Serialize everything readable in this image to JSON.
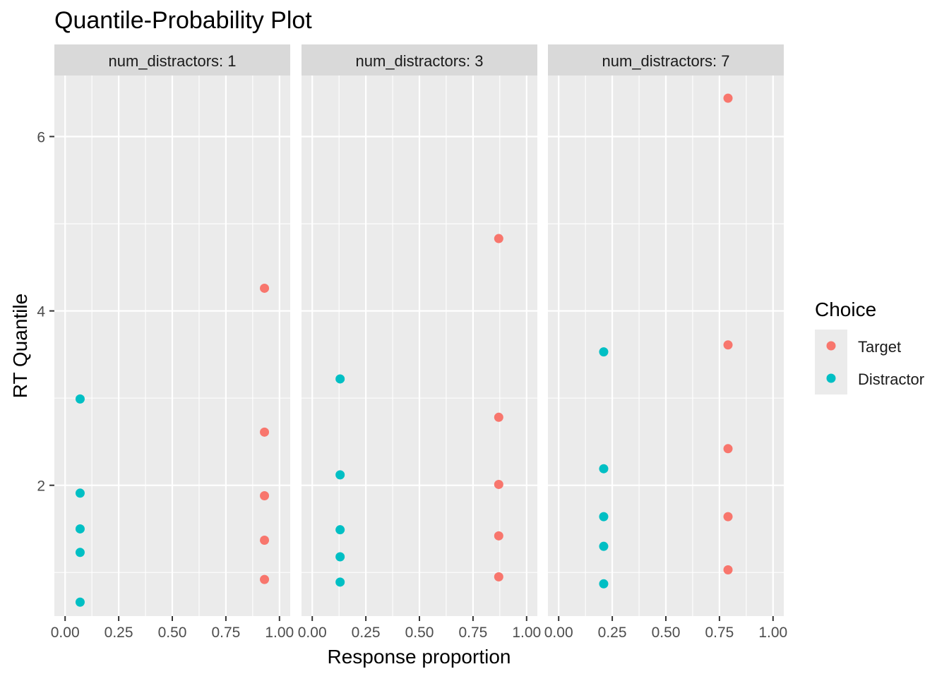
{
  "title": "Quantile-Probability Plot",
  "chart_data": {
    "type": "scatter",
    "title": "Quantile-Probability Plot",
    "xlabel": "Response proportion",
    "ylabel": "RT Quantile",
    "xlim": [
      0,
      1
    ],
    "ylim": [
      0.5,
      6.7
    ],
    "x_ticks": [
      "0.00",
      "0.25",
      "0.50",
      "0.75",
      "1.00"
    ],
    "y_ticks": [
      "2",
      "4",
      "6"
    ],
    "grid": true,
    "legend": {
      "title": "Choice",
      "position": "right",
      "entries": [
        {
          "name": "Target",
          "color": "#F8766D"
        },
        {
          "name": "Distractor",
          "color": "#00BFC4"
        }
      ]
    },
    "facets": [
      {
        "label": "num_distractors: 1",
        "series": [
          {
            "name": "Target",
            "x": [
              0.93,
              0.93,
              0.93,
              0.93,
              0.93
            ],
            "y": [
              0.92,
              1.37,
              1.88,
              2.61,
              4.26
            ]
          },
          {
            "name": "Distractor",
            "x": [
              0.07,
              0.07,
              0.07,
              0.07,
              0.07
            ],
            "y": [
              0.66,
              1.23,
              1.5,
              1.91,
              2.99
            ]
          }
        ]
      },
      {
        "label": "num_distractors: 3",
        "series": [
          {
            "name": "Target",
            "x": [
              0.87,
              0.87,
              0.87,
              0.87,
              0.87
            ],
            "y": [
              0.95,
              1.42,
              2.01,
              2.78,
              4.83
            ]
          },
          {
            "name": "Distractor",
            "x": [
              0.13,
              0.13,
              0.13,
              0.13,
              0.13
            ],
            "y": [
              0.89,
              1.18,
              1.49,
              2.12,
              3.22
            ]
          }
        ]
      },
      {
        "label": "num_distractors: 7",
        "series": [
          {
            "name": "Target",
            "x": [
              0.79,
              0.79,
              0.79,
              0.79,
              0.79
            ],
            "y": [
              1.03,
              1.64,
              2.42,
              3.61,
              6.44
            ]
          },
          {
            "name": "Distractor",
            "x": [
              0.21,
              0.21,
              0.21,
              0.21,
              0.21
            ],
            "y": [
              0.87,
              1.3,
              1.64,
              2.19,
              3.53
            ]
          }
        ]
      }
    ]
  }
}
